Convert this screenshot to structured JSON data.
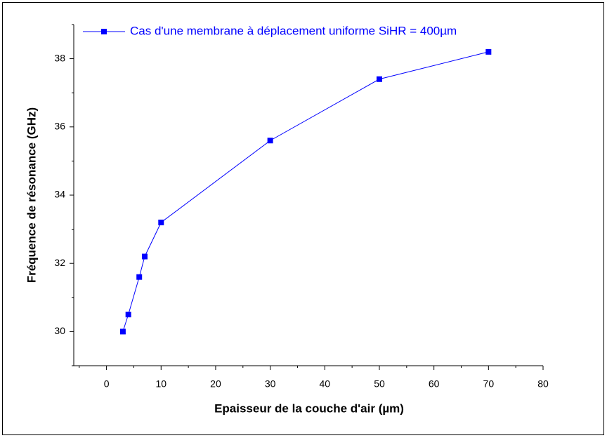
{
  "chart_data": {
    "type": "line",
    "x_label": "Epaisseur de la couche d'air (µm)",
    "y_label": "Fréquence de résonance (GHz)",
    "x": [
      3,
      4,
      6,
      7,
      10,
      30,
      50,
      70
    ],
    "series": [
      {
        "name": "Cas d'une membrane à déplacement uniforme SiHR = 400µm",
        "color": "#0000ff",
        "values": [
          30,
          30.5,
          31.6,
          32.2,
          33.2,
          35.6,
          37.4,
          38.2
        ]
      }
    ],
    "xlim": [
      -6,
      80
    ],
    "xticks": [
      0,
      10,
      20,
      30,
      40,
      50,
      60,
      70,
      80
    ],
    "ylim": [
      29,
      39
    ],
    "yticks": [
      30,
      32,
      34,
      36,
      38
    ],
    "legend": "top-left",
    "grid": false
  }
}
